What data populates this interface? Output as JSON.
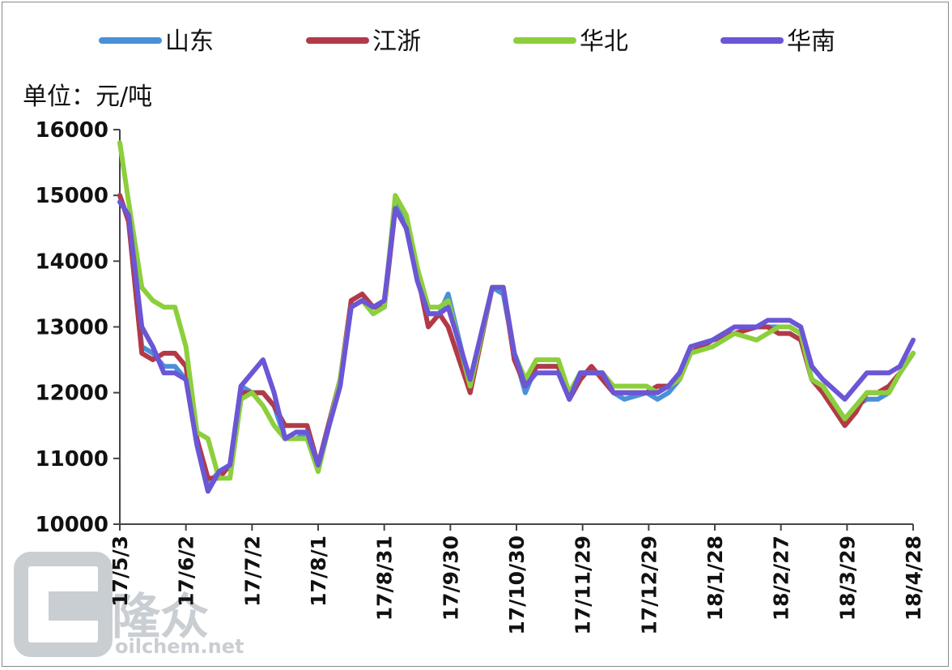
{
  "chart_data": {
    "type": "line",
    "unit_label": "单位：元/吨",
    "ylim": [
      10000,
      16000
    ],
    "yticks": [
      "10000",
      "11000",
      "12000",
      "13000",
      "14000",
      "15000",
      "16000"
    ],
    "x_tick_labels": [
      "17/5/3",
      "17/6/2",
      "17/7/2",
      "17/8/1",
      "17/8/31",
      "17/9/30",
      "17/10/30",
      "17/11/29",
      "17/12/29",
      "18/1/28",
      "18/2/27",
      "18/3/29",
      "18/4/28"
    ],
    "x_start_label": "17/5/3",
    "x_end_label": "18/4/28",
    "legend_position": "top",
    "grid": false,
    "series": [
      {
        "name": "山东",
        "color": "#4a90d9",
        "points": [
          [
            "17/5/3",
            15000
          ],
          [
            "17/5/7",
            14600
          ],
          [
            "17/5/13",
            12700
          ],
          [
            "17/5/18",
            12600
          ],
          [
            "17/5/23",
            12400
          ],
          [
            "17/5/28",
            12400
          ],
          [
            "17/6/2",
            12200
          ],
          [
            "17/6/7",
            11300
          ],
          [
            "17/6/12",
            10600
          ],
          [
            "17/6/17",
            10800
          ],
          [
            "17/6/22",
            10900
          ],
          [
            "17/6/27",
            12100
          ],
          [
            "17/7/2",
            12000
          ],
          [
            "17/7/7",
            12000
          ],
          [
            "17/7/12",
            11800
          ],
          [
            "17/7/17",
            11300
          ],
          [
            "17/7/22",
            11300
          ],
          [
            "17/7/27",
            11400
          ],
          [
            "17/8/1",
            10900
          ],
          [
            "17/8/11",
            12200
          ],
          [
            "17/8/16",
            13300
          ],
          [
            "17/8/21",
            13400
          ],
          [
            "17/8/26",
            13300
          ],
          [
            "17/8/31",
            13300
          ],
          [
            "17/9/5",
            14900
          ],
          [
            "17/9/10",
            14500
          ],
          [
            "17/9/15",
            13800
          ],
          [
            "17/9/20",
            13200
          ],
          [
            "17/9/25",
            13200
          ],
          [
            "17/9/29",
            13500
          ],
          [
            "17/10/9",
            12100
          ],
          [
            "17/10/19",
            13600
          ],
          [
            "17/10/24",
            13500
          ],
          [
            "17/10/29",
            12600
          ],
          [
            "17/11/3",
            12000
          ],
          [
            "17/11/8",
            12400
          ],
          [
            "17/11/13",
            12400
          ],
          [
            "17/11/18",
            12400
          ],
          [
            "17/11/23",
            11900
          ],
          [
            "17/11/28",
            12300
          ],
          [
            "17/12/3",
            12300
          ],
          [
            "17/12/8",
            12300
          ],
          [
            "17/12/13",
            12000
          ],
          [
            "17/12/18",
            11900
          ],
          [
            "17/12/28",
            12000
          ],
          [
            "18/1/2",
            11900
          ],
          [
            "18/1/7",
            12000
          ],
          [
            "18/1/12",
            12200
          ],
          [
            "18/1/17",
            12600
          ],
          [
            "18/1/27",
            12800
          ],
          [
            "18/2/6",
            12900
          ],
          [
            "18/2/16",
            13000
          ],
          [
            "18/2/21",
            13000
          ],
          [
            "18/2/26",
            13000
          ],
          [
            "18/3/3",
            13000
          ],
          [
            "18/3/8",
            12900
          ],
          [
            "18/3/13",
            12200
          ],
          [
            "18/3/18",
            12100
          ],
          [
            "18/3/28",
            11600
          ],
          [
            "18/4/2",
            11800
          ],
          [
            "18/4/7",
            11900
          ],
          [
            "18/4/12",
            11900
          ],
          [
            "18/4/17",
            12000
          ],
          [
            "18/4/22",
            12300
          ],
          [
            "18/4/28",
            12600
          ]
        ]
      },
      {
        "name": "江浙",
        "color": "#b23a48",
        "points": [
          [
            "17/5/3",
            15000
          ],
          [
            "17/5/7",
            14600
          ],
          [
            "17/5/13",
            12600
          ],
          [
            "17/5/18",
            12500
          ],
          [
            "17/5/23",
            12600
          ],
          [
            "17/5/28",
            12600
          ],
          [
            "17/6/2",
            12400
          ],
          [
            "17/6/7",
            11300
          ],
          [
            "17/6/12",
            10700
          ],
          [
            "17/6/17",
            10700
          ],
          [
            "17/6/22",
            10900
          ],
          [
            "17/6/27",
            12000
          ],
          [
            "17/7/2",
            12000
          ],
          [
            "17/7/7",
            12000
          ],
          [
            "17/7/12",
            11800
          ],
          [
            "17/7/17",
            11500
          ],
          [
            "17/7/22",
            11500
          ],
          [
            "17/7/27",
            11500
          ],
          [
            "17/8/1",
            10900
          ],
          [
            "17/8/11",
            12200
          ],
          [
            "17/8/16",
            13400
          ],
          [
            "17/8/21",
            13500
          ],
          [
            "17/8/26",
            13300
          ],
          [
            "17/8/31",
            13300
          ],
          [
            "17/9/5",
            14800
          ],
          [
            "17/9/10",
            14500
          ],
          [
            "17/9/15",
            13800
          ],
          [
            "17/9/20",
            13000
          ],
          [
            "17/9/25",
            13200
          ],
          [
            "17/9/29",
            13000
          ],
          [
            "17/10/9",
            12000
          ],
          [
            "17/10/19",
            13600
          ],
          [
            "17/10/24",
            13600
          ],
          [
            "17/10/29",
            12500
          ],
          [
            "17/11/3",
            12100
          ],
          [
            "17/11/8",
            12400
          ],
          [
            "17/11/13",
            12400
          ],
          [
            "17/11/18",
            12400
          ],
          [
            "17/11/23",
            11900
          ],
          [
            "17/11/28",
            12200
          ],
          [
            "17/12/3",
            12400
          ],
          [
            "17/12/8",
            12200
          ],
          [
            "17/12/13",
            12000
          ],
          [
            "17/12/18",
            12000
          ],
          [
            "17/12/28",
            12000
          ],
          [
            "18/1/2",
            12100
          ],
          [
            "18/1/7",
            12100
          ],
          [
            "18/1/12",
            12200
          ],
          [
            "18/1/17",
            12600
          ],
          [
            "18/1/27",
            12800
          ],
          [
            "18/2/6",
            12900
          ],
          [
            "18/2/16",
            13000
          ],
          [
            "18/2/21",
            13000
          ],
          [
            "18/2/26",
            12900
          ],
          [
            "18/3/3",
            12900
          ],
          [
            "18/3/8",
            12800
          ],
          [
            "18/3/13",
            12200
          ],
          [
            "18/3/18",
            12000
          ],
          [
            "18/3/28",
            11500
          ],
          [
            "18/4/2",
            11700
          ],
          [
            "18/4/7",
            12000
          ],
          [
            "18/4/12",
            12000
          ],
          [
            "18/4/17",
            12100
          ],
          [
            "18/4/22",
            12300
          ],
          [
            "18/4/28",
            12600
          ]
        ]
      },
      {
        "name": "华北",
        "color": "#8ccf3c",
        "points": [
          [
            "17/5/3",
            15800
          ],
          [
            "17/5/7",
            14900
          ],
          [
            "17/5/13",
            13600
          ],
          [
            "17/5/18",
            13400
          ],
          [
            "17/5/23",
            13300
          ],
          [
            "17/5/28",
            13300
          ],
          [
            "17/6/2",
            12700
          ],
          [
            "17/6/7",
            11400
          ],
          [
            "17/6/12",
            11300
          ],
          [
            "17/6/17",
            10700
          ],
          [
            "17/6/22",
            10700
          ],
          [
            "17/6/27",
            11900
          ],
          [
            "17/7/2",
            12000
          ],
          [
            "17/7/7",
            11800
          ],
          [
            "17/7/12",
            11500
          ],
          [
            "17/7/17",
            11300
          ],
          [
            "17/7/22",
            11300
          ],
          [
            "17/7/27",
            11300
          ],
          [
            "17/8/1",
            10800
          ],
          [
            "17/8/11",
            12200
          ],
          [
            "17/8/16",
            13300
          ],
          [
            "17/8/21",
            13400
          ],
          [
            "17/8/26",
            13200
          ],
          [
            "17/8/31",
            13300
          ],
          [
            "17/9/5",
            15000
          ],
          [
            "17/9/10",
            14700
          ],
          [
            "17/9/15",
            13900
          ],
          [
            "17/9/20",
            13300
          ],
          [
            "17/9/25",
            13300
          ],
          [
            "17/9/29",
            13400
          ],
          [
            "17/10/9",
            12100
          ],
          [
            "17/10/19",
            13600
          ],
          [
            "17/10/24",
            13600
          ],
          [
            "17/10/29",
            12600
          ],
          [
            "17/11/3",
            12200
          ],
          [
            "17/11/8",
            12500
          ],
          [
            "17/11/13",
            12500
          ],
          [
            "17/11/18",
            12500
          ],
          [
            "17/11/23",
            12000
          ],
          [
            "17/11/28",
            12300
          ],
          [
            "17/12/3",
            12300
          ],
          [
            "17/12/8",
            12300
          ],
          [
            "17/12/13",
            12100
          ],
          [
            "17/12/18",
            12100
          ],
          [
            "17/12/28",
            12100
          ],
          [
            "18/1/2",
            12000
          ],
          [
            "18/1/7",
            12100
          ],
          [
            "18/1/12",
            12200
          ],
          [
            "18/1/17",
            12600
          ],
          [
            "18/1/27",
            12700
          ],
          [
            "18/2/6",
            12900
          ],
          [
            "18/2/16",
            12800
          ],
          [
            "18/2/21",
            12900
          ],
          [
            "18/2/26",
            13000
          ],
          [
            "18/3/3",
            13000
          ],
          [
            "18/3/8",
            12900
          ],
          [
            "18/3/13",
            12200
          ],
          [
            "18/3/18",
            12100
          ],
          [
            "18/3/28",
            11600
          ],
          [
            "18/4/2",
            11800
          ],
          [
            "18/4/7",
            12000
          ],
          [
            "18/4/12",
            12000
          ],
          [
            "18/4/17",
            12000
          ],
          [
            "18/4/22",
            12300
          ],
          [
            "18/4/28",
            12600
          ]
        ]
      },
      {
        "name": "华南",
        "color": "#6a56d6",
        "points": [
          [
            "17/5/3",
            14900
          ],
          [
            "17/5/7",
            14700
          ],
          [
            "17/5/13",
            13000
          ],
          [
            "17/5/18",
            12700
          ],
          [
            "17/5/23",
            12300
          ],
          [
            "17/5/28",
            12300
          ],
          [
            "17/6/2",
            12200
          ],
          [
            "17/6/7",
            11200
          ],
          [
            "17/6/12",
            10500
          ],
          [
            "17/6/17",
            10800
          ],
          [
            "17/6/22",
            10900
          ],
          [
            "17/6/27",
            12100
          ],
          [
            "17/7/2",
            12300
          ],
          [
            "17/7/7",
            12500
          ],
          [
            "17/7/12",
            12000
          ],
          [
            "17/7/17",
            11300
          ],
          [
            "17/7/22",
            11400
          ],
          [
            "17/7/27",
            11400
          ],
          [
            "17/8/1",
            10900
          ],
          [
            "17/8/11",
            12100
          ],
          [
            "17/8/16",
            13300
          ],
          [
            "17/8/21",
            13400
          ],
          [
            "17/8/26",
            13300
          ],
          [
            "17/8/31",
            13400
          ],
          [
            "17/9/5",
            14800
          ],
          [
            "17/9/10",
            14500
          ],
          [
            "17/9/15",
            13700
          ],
          [
            "17/9/20",
            13200
          ],
          [
            "17/9/25",
            13200
          ],
          [
            "17/9/29",
            13300
          ],
          [
            "17/10/9",
            12200
          ],
          [
            "17/10/19",
            13600
          ],
          [
            "17/10/24",
            13600
          ],
          [
            "17/10/29",
            12600
          ],
          [
            "17/11/3",
            12100
          ],
          [
            "17/11/8",
            12300
          ],
          [
            "17/11/13",
            12300
          ],
          [
            "17/11/18",
            12300
          ],
          [
            "17/11/23",
            11900
          ],
          [
            "17/11/28",
            12300
          ],
          [
            "17/12/3",
            12300
          ],
          [
            "17/12/8",
            12300
          ],
          [
            "17/12/13",
            12000
          ],
          [
            "17/12/18",
            12000
          ],
          [
            "17/12/28",
            12000
          ],
          [
            "18/1/2",
            12000
          ],
          [
            "18/1/7",
            12100
          ],
          [
            "18/1/12",
            12300
          ],
          [
            "18/1/17",
            12700
          ],
          [
            "18/1/27",
            12800
          ],
          [
            "18/2/6",
            13000
          ],
          [
            "18/2/16",
            13000
          ],
          [
            "18/2/21",
            13100
          ],
          [
            "18/2/26",
            13100
          ],
          [
            "18/3/3",
            13100
          ],
          [
            "18/3/8",
            13000
          ],
          [
            "18/3/13",
            12400
          ],
          [
            "18/3/18",
            12200
          ],
          [
            "18/3/28",
            11900
          ],
          [
            "18/4/2",
            12100
          ],
          [
            "18/4/7",
            12300
          ],
          [
            "18/4/12",
            12300
          ],
          [
            "18/4/17",
            12300
          ],
          [
            "18/4/22",
            12400
          ],
          [
            "18/4/28",
            12800
          ]
        ]
      }
    ]
  },
  "watermark": {
    "brand": "隆众",
    "url": "oilchem.net"
  }
}
